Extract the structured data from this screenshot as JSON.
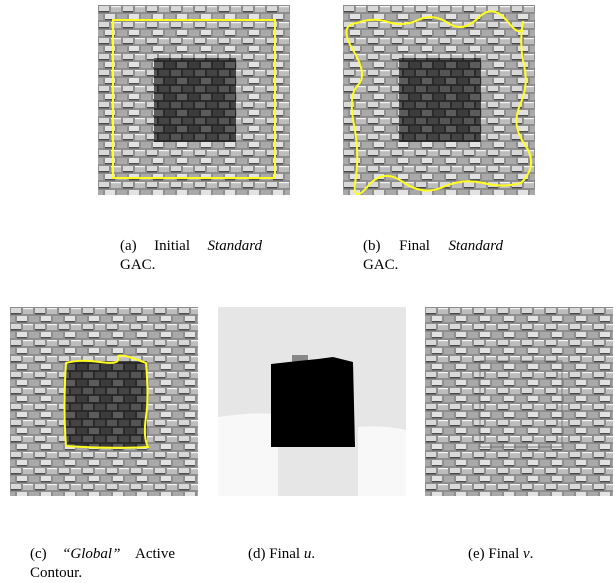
{
  "subfigures": [
    {
      "parts": [
        {
          "text": "(a) Initial "
        },
        {
          "text": "Standard",
          "italic": true
        },
        {
          "text": " GAC."
        }
      ]
    },
    {
      "parts": [
        {
          "text": "(b) Final "
        },
        {
          "text": "Standard",
          "italic": true
        },
        {
          "text": " GAC."
        }
      ]
    },
    {
      "parts": [
        {
          "text": "(c) "
        },
        {
          "text": "“Global”",
          "italic": true
        },
        {
          "text": " Active Contour."
        }
      ]
    },
    {
      "parts": [
        {
          "text": "(d) Final "
        },
        {
          "text": "u",
          "italic": true
        },
        {
          "text": "."
        }
      ]
    },
    {
      "parts": [
        {
          "text": "(e) Final "
        },
        {
          "text": "v",
          "italic": true
        },
        {
          "text": "."
        }
      ]
    }
  ]
}
